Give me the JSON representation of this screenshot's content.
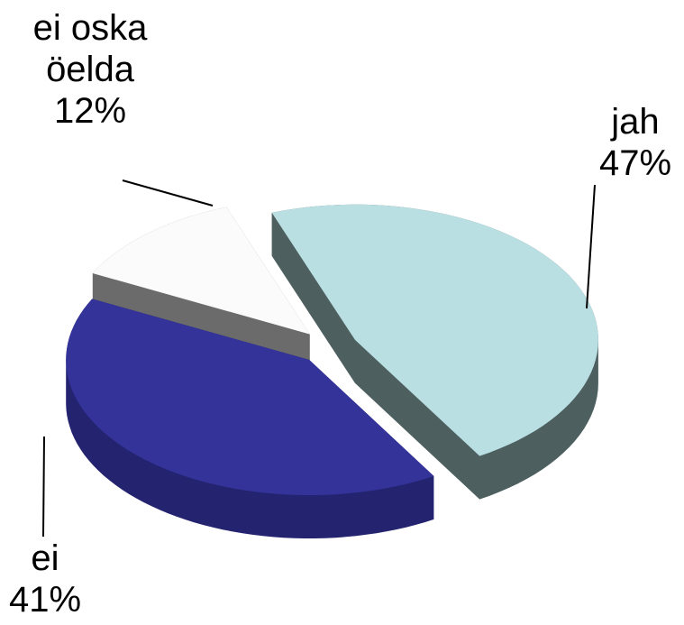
{
  "chart_data": {
    "type": "pie3d",
    "categories": [
      "jah",
      "ei",
      "ei oska öelda"
    ],
    "values": [
      47,
      41,
      12
    ],
    "value_labels": [
      "47%",
      "41%",
      "12%"
    ],
    "colors": [
      "#b9dfe3",
      "#333399",
      "#fbfbfb"
    ],
    "side_colors": [
      "#4d5f5f",
      "#232370",
      "#6b6b6b"
    ]
  }
}
